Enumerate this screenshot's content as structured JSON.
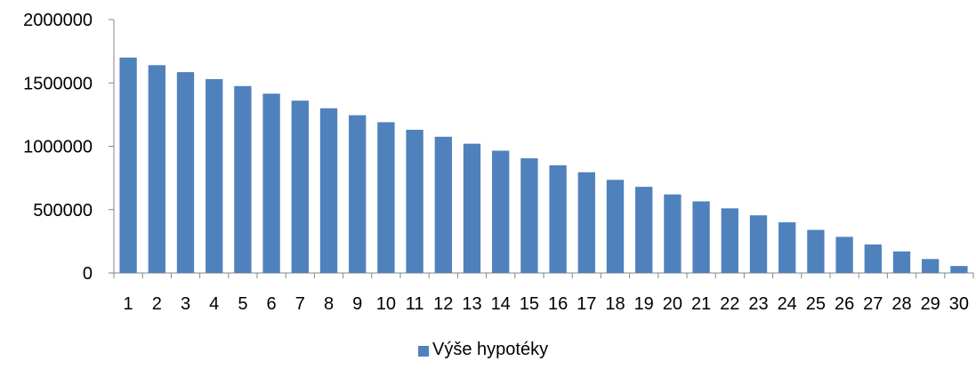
{
  "colors": {
    "bar": "#4F81BD",
    "axis": "#868686",
    "text": "#000000"
  },
  "chart_data": {
    "type": "bar",
    "title": "",
    "xlabel": "",
    "ylabel": "",
    "categories": [
      "1",
      "2",
      "3",
      "4",
      "5",
      "6",
      "7",
      "8",
      "9",
      "10",
      "11",
      "12",
      "13",
      "14",
      "15",
      "16",
      "17",
      "18",
      "19",
      "20",
      "21",
      "22",
      "23",
      "24",
      "25",
      "26",
      "27",
      "28",
      "29",
      "30"
    ],
    "series": [
      {
        "name": "Výše hypotéky",
        "values": [
          1700000,
          1640000,
          1585000,
          1530000,
          1475000,
          1415000,
          1360000,
          1300000,
          1245000,
          1190000,
          1130000,
          1075000,
          1020000,
          965000,
          905000,
          850000,
          795000,
          735000,
          680000,
          620000,
          565000,
          510000,
          455000,
          400000,
          340000,
          285000,
          225000,
          170000,
          110000,
          55000
        ]
      }
    ],
    "ylim": [
      0,
      2000000
    ],
    "yticks": [
      0,
      500000,
      1000000,
      1500000,
      2000000
    ],
    "grid": false,
    "legend": "bottom"
  }
}
